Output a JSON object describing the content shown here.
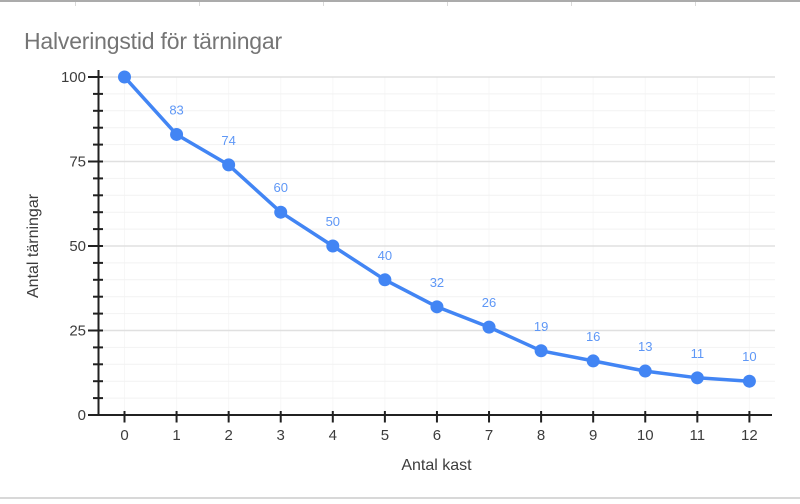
{
  "chart_data": {
    "type": "line",
    "title": "Halveringstid för tärningar",
    "xlabel": "Antal kast",
    "ylabel": "Antal tärningar",
    "x": [
      0,
      1,
      2,
      3,
      4,
      5,
      6,
      7,
      8,
      9,
      10,
      11,
      12
    ],
    "values": [
      100,
      83,
      74,
      60,
      50,
      40,
      32,
      26,
      19,
      16,
      13,
      11,
      10
    ],
    "point_labels": [
      "",
      "83",
      "74",
      "60",
      "50",
      "40",
      "32",
      "26",
      "19",
      "16",
      "13",
      "11",
      "10"
    ],
    "x_tick_labels": [
      "0",
      "1",
      "2",
      "3",
      "4",
      "5",
      "6",
      "7",
      "8",
      "9",
      "10",
      "11",
      "12"
    ],
    "y_tick_labels": [
      "0",
      "25",
      "50",
      "75",
      "100"
    ],
    "y_major_ticks": [
      0,
      25,
      50,
      75,
      100
    ],
    "y_minor_step": 5,
    "xlim": [
      0,
      12
    ],
    "ylim": [
      0,
      100
    ],
    "grid": "horizontal minor+major, very faint vertical at each x tick",
    "legend": "none",
    "colors": {
      "series": "#4285f4",
      "point_label": "#5e97f6",
      "title": "#757575",
      "tick_label": "#3c3c3c",
      "axis": "#212121",
      "grid_major": "#e0e0e0",
      "grid_minor": "#f2f2f2",
      "grid_vertical": "#f7f7f7"
    }
  }
}
